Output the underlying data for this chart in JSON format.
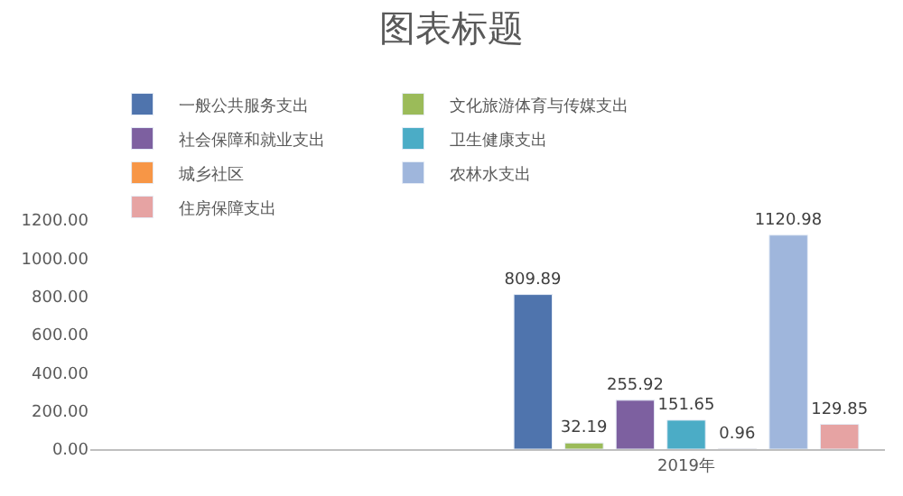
{
  "chart_data": {
    "type": "bar",
    "title": "图表标题",
    "categories": [
      null,
      "2019年"
    ],
    "series": [
      {
        "name": "一般公共服务支出",
        "color": "#4f74ad",
        "values": [
          null,
          809.89
        ]
      },
      {
        "name": "文化旅游体育与传媒支出",
        "color": "#9bbb59",
        "values": [
          null,
          32.19
        ]
      },
      {
        "name": "社会保障和就业支出",
        "color": "#7d60a0",
        "values": [
          null,
          255.92
        ]
      },
      {
        "name": "卫生健康支出",
        "color": "#4bacc6",
        "values": [
          null,
          151.65
        ]
      },
      {
        "name": "城乡社区",
        "color": "#f79646",
        "values": [
          null,
          0.96
        ]
      },
      {
        "name": "农林水支出",
        "color": "#9fb6dc",
        "values": [
          null,
          1120.98
        ]
      },
      {
        "name": "住房保障支出",
        "color": "#e6a3a3",
        "values": [
          null,
          129.85
        ]
      }
    ],
    "ylim": [
      0,
      1200
    ],
    "yticks": [
      {
        "value": 0,
        "label": "0.00"
      },
      {
        "value": 200,
        "label": "200.00"
      },
      {
        "value": 400,
        "label": "400.00"
      },
      {
        "value": 600,
        "label": "600.00"
      },
      {
        "value": 800,
        "label": "800.00"
      },
      {
        "value": 1000,
        "label": "1000.00"
      },
      {
        "value": 1200,
        "label": "1200.00"
      }
    ],
    "grid": false,
    "legend": "top",
    "data_labels": true
  }
}
